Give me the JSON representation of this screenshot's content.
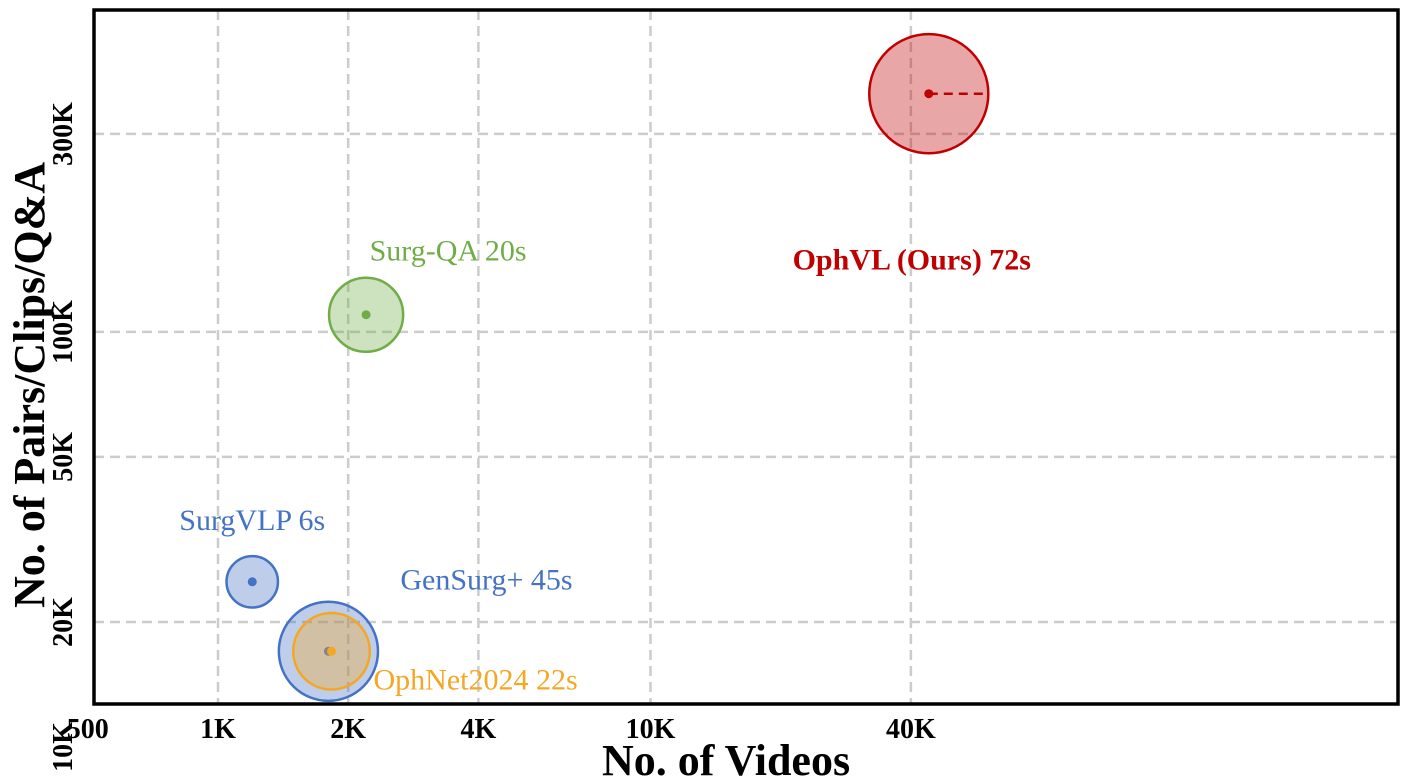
{
  "chart_data": {
    "type": "scatter",
    "xlabel": "No. of Videos",
    "ylabel": "No. of Pairs/Clips/Q&A",
    "x_scale": "log",
    "y_scale": "log",
    "grid": true,
    "x_ticks": [
      {
        "value": 500,
        "label": "500"
      },
      {
        "value": 1000,
        "label": "1K"
      },
      {
        "value": 2000,
        "label": "2K"
      },
      {
        "value": 4000,
        "label": "4K"
      },
      {
        "value": 10000,
        "label": "10K"
      },
      {
        "value": 40000,
        "label": "40K"
      }
    ],
    "y_ticks": [
      {
        "value": 10000,
        "label": "10K"
      },
      {
        "value": 20000,
        "label": "20K"
      },
      {
        "value": 50000,
        "label": "50K"
      },
      {
        "value": 100000,
        "label": "100K"
      },
      {
        "value": 300000,
        "label": "300K"
      }
    ],
    "series": [
      {
        "name": "SurgVLP",
        "label": "SurgVLP 6s",
        "x": 1200,
        "y": 25000,
        "avg_duration_s": 6,
        "color": "#4472c4",
        "bold": false
      },
      {
        "name": "GenSurg+",
        "label": "GenSurg+ 45s",
        "x": 1800,
        "y": 17000,
        "avg_duration_s": 45,
        "color": "#4472c4",
        "bold": false
      },
      {
        "name": "OphNet2024",
        "label": "OphNet2024 22s",
        "x": 1830,
        "y": 17000,
        "avg_duration_s": 22,
        "color": "#f5a623",
        "bold": false
      },
      {
        "name": "Surg-QA",
        "label": "Surg-QA 20s",
        "x": 2200,
        "y": 110000,
        "avg_duration_s": 20,
        "color": "#70ad47",
        "bold": false
      },
      {
        "name": "OphVL (Ours)",
        "label": "OphVL (Ours) 72s",
        "x": 44000,
        "y": 375000,
        "avg_duration_s": 72,
        "color": "#c00000",
        "bold": true,
        "arrow_right": true
      }
    ]
  }
}
